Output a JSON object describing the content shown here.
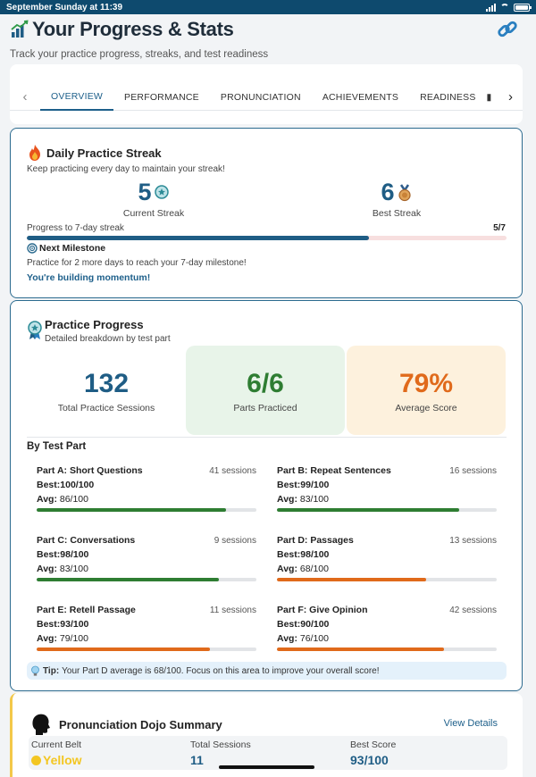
{
  "status_bar": {
    "time": "September Sunday at 11:39"
  },
  "header": {
    "title": "Your Progress & Stats",
    "subtitle": "Track your practice progress, streaks, and test readiness",
    "title_icon": "bar-chart-icon",
    "link_icon": "link-icon"
  },
  "tabs": [
    {
      "label": "OVERVIEW",
      "active": true
    },
    {
      "label": "PERFORMANCE",
      "active": false
    },
    {
      "label": "PRONUNCIATION",
      "active": false
    },
    {
      "label": "ACHIEVEMENTS",
      "active": false
    },
    {
      "label": "READINESS",
      "active": false
    }
  ],
  "streak": {
    "title": "Daily Practice Streak",
    "subtitle": "Keep practicing every day to maintain your streak!",
    "current_value": "5",
    "current_label": "Current Streak",
    "best_value": "6",
    "best_label": "Best Streak",
    "progress_label": "Progress to 7-day streak",
    "progress_text": "5/7",
    "progress_fraction": 0.714,
    "milestone_title": "Next Milestone",
    "milestone_text": "Practice for 2 more days to reach your 7-day milestone!",
    "momentum_text": "You're building momentum!"
  },
  "practice": {
    "title": "Practice Progress",
    "subtitle": "Detailed breakdown by test part",
    "stats": [
      {
        "value": "132",
        "label": "Total Practice Sessions",
        "color": "#1f5d85",
        "bg": "#ffffff"
      },
      {
        "value": "6/6",
        "label": "Parts Practiced",
        "color": "#2e7d32",
        "bg": "#e8f4e9"
      },
      {
        "value": "79%",
        "label": "Average Score",
        "color": "#e06a1b",
        "bg": "#fdf1dd"
      }
    ],
    "by_part_title": "By Test Part",
    "parts": [
      {
        "name": "Part A: Short Questions",
        "sessions": "41 sessions",
        "best_label": "Best:",
        "best": "100/100",
        "avg_label": "Avg:",
        "avg": "86/100",
        "avg_fraction": 0.86,
        "color": "#2e7d32"
      },
      {
        "name": "Part B: Repeat Sentences",
        "sessions": "16 sessions",
        "best_label": "Best:",
        "best": "99/100",
        "avg_label": "Avg:",
        "avg": "83/100",
        "avg_fraction": 0.83,
        "color": "#2e7d32"
      },
      {
        "name": "Part C: Conversations",
        "sessions": "9 sessions",
        "best_label": "Best:",
        "best": "98/100",
        "avg_label": "Avg:",
        "avg": "83/100",
        "avg_fraction": 0.83,
        "color": "#2e7d32"
      },
      {
        "name": "Part D: Passages",
        "sessions": "13 sessions",
        "best_label": "Best:",
        "best": "98/100",
        "avg_label": "Avg:",
        "avg": "68/100",
        "avg_fraction": 0.68,
        "color": "#e06a1b"
      },
      {
        "name": "Part E: Retell Passage",
        "sessions": "11 sessions",
        "best_label": "Best:",
        "best": "93/100",
        "avg_label": "Avg:",
        "avg": "79/100",
        "avg_fraction": 0.79,
        "color": "#e06a1b"
      },
      {
        "name": "Part F: Give Opinion",
        "sessions": "42 sessions",
        "best_label": "Best:",
        "best": "90/100",
        "avg_label": "Avg:",
        "avg": "76/100",
        "avg_fraction": 0.76,
        "color": "#e06a1b"
      }
    ],
    "tip_label": "Tip:",
    "tip_text": "Your Part D average is 68/100. Focus on this area to improve your overall score!"
  },
  "dojo": {
    "title": "Pronunciation Dojo Summary",
    "view_details": "View Details",
    "belt_label": "Current Belt",
    "belt_value": "Yellow",
    "belt_color": "#f3c622",
    "sessions_label": "Total Sessions",
    "sessions_value": "11",
    "best_label": "Best Score",
    "best_value": "93/100"
  }
}
